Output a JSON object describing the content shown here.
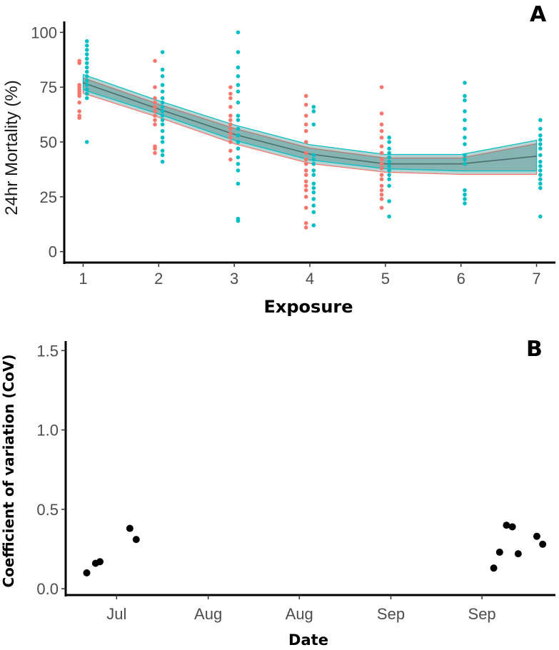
{
  "chart_data": [
    {
      "panel_label": "A",
      "type": "scatter",
      "xlabel": "Exposure",
      "ylabel": "24hr Mortality (%)",
      "xlim": [
        0.75,
        7.25
      ],
      "ylim": [
        -5,
        105
      ],
      "x_ticks": [
        "1",
        "2",
        "3",
        "4",
        "5",
        "6",
        "7"
      ],
      "y_ticks": [
        "0",
        "25",
        "50",
        "75",
        "100"
      ],
      "colors": {
        "group1": "#F8766D",
        "group2": "#00BFC4",
        "ribbon": "#2F7F7B",
        "line": "#4A6E6C"
      },
      "series": [
        {
          "name": "group1",
          "points": [
            [
              1,
              61
            ],
            [
              1,
              62
            ],
            [
              1,
              64
            ],
            [
              1,
              68
            ],
            [
              1,
              71
            ],
            [
              1,
              72
            ],
            [
              1,
              73
            ],
            [
              1,
              74
            ],
            [
              1,
              75
            ],
            [
              1,
              76
            ],
            [
              1,
              86
            ],
            [
              1,
              87
            ],
            [
              2,
              45
            ],
            [
              2,
              47
            ],
            [
              2,
              48
            ],
            [
              2,
              58
            ],
            [
              2,
              60
            ],
            [
              2,
              62
            ],
            [
              2,
              64
            ],
            [
              2,
              66
            ],
            [
              2,
              68
            ],
            [
              2,
              70
            ],
            [
              2,
              75
            ],
            [
              2,
              87
            ],
            [
              3,
              42
            ],
            [
              3,
              46
            ],
            [
              3,
              50
            ],
            [
              3,
              52
            ],
            [
              3,
              54
            ],
            [
              3,
              56
            ],
            [
              3,
              58
            ],
            [
              3,
              60
            ],
            [
              3,
              62
            ],
            [
              3,
              66
            ],
            [
              3,
              70
            ],
            [
              3,
              72
            ],
            [
              3,
              75
            ],
            [
              4,
              11
            ],
            [
              4,
              13
            ],
            [
              4,
              20
            ],
            [
              4,
              25
            ],
            [
              4,
              28
            ],
            [
              4,
              30
            ],
            [
              4,
              32
            ],
            [
              4,
              35
            ],
            [
              4,
              37
            ],
            [
              4,
              40
            ],
            [
              4,
              42
            ],
            [
              4,
              45
            ],
            [
              4,
              50
            ],
            [
              4,
              55
            ],
            [
              4,
              58
            ],
            [
              4,
              62
            ],
            [
              4,
              67
            ],
            [
              4,
              71
            ],
            [
              5,
              20
            ],
            [
              5,
              24
            ],
            [
              5,
              26
            ],
            [
              5,
              28
            ],
            [
              5,
              30
            ],
            [
              5,
              33
            ],
            [
              5,
              35
            ],
            [
              5,
              38
            ],
            [
              5,
              40
            ],
            [
              5,
              42
            ],
            [
              5,
              45
            ],
            [
              5,
              48
            ],
            [
              5,
              52
            ],
            [
              5,
              55
            ],
            [
              5,
              58
            ],
            [
              5,
              63
            ],
            [
              5,
              75
            ]
          ]
        },
        {
          "name": "group2",
          "points": [
            [
              1,
              50
            ],
            [
              1,
              70
            ],
            [
              1,
              72
            ],
            [
              1,
              74
            ],
            [
              1,
              76
            ],
            [
              1,
              78
            ],
            [
              1,
              80
            ],
            [
              1,
              82
            ],
            [
              1,
              84
            ],
            [
              1,
              86
            ],
            [
              1,
              88
            ],
            [
              1,
              90
            ],
            [
              1,
              92
            ],
            [
              1,
              94
            ],
            [
              1,
              96
            ],
            [
              2,
              41
            ],
            [
              2,
              44
            ],
            [
              2,
              46
            ],
            [
              2,
              50
            ],
            [
              2,
              52
            ],
            [
              2,
              55
            ],
            [
              2,
              58
            ],
            [
              2,
              60
            ],
            [
              2,
              62
            ],
            [
              2,
              64
            ],
            [
              2,
              66
            ],
            [
              2,
              68
            ],
            [
              2,
              70
            ],
            [
              2,
              73
            ],
            [
              2,
              76
            ],
            [
              2,
              80
            ],
            [
              2,
              83
            ],
            [
              2,
              91
            ],
            [
              3,
              14
            ],
            [
              3,
              15
            ],
            [
              3,
              31
            ],
            [
              3,
              37
            ],
            [
              3,
              40
            ],
            [
              3,
              43
            ],
            [
              3,
              47
            ],
            [
              3,
              50
            ],
            [
              3,
              53
            ],
            [
              3,
              56
            ],
            [
              3,
              60
            ],
            [
              3,
              62
            ],
            [
              3,
              68
            ],
            [
              3,
              73
            ],
            [
              3,
              76
            ],
            [
              3,
              80
            ],
            [
              3,
              84
            ],
            [
              3,
              91
            ],
            [
              3,
              100
            ],
            [
              4,
              12
            ],
            [
              4,
              18
            ],
            [
              4,
              21
            ],
            [
              4,
              24
            ],
            [
              4,
              27
            ],
            [
              4,
              29
            ],
            [
              4,
              31
            ],
            [
              4,
              35
            ],
            [
              4,
              37
            ],
            [
              4,
              40
            ],
            [
              4,
              42
            ],
            [
              4,
              44
            ],
            [
              4,
              58
            ],
            [
              4,
              64
            ],
            [
              4,
              66
            ],
            [
              5,
              16
            ],
            [
              5,
              23
            ],
            [
              5,
              30
            ],
            [
              5,
              33
            ],
            [
              5,
              35
            ],
            [
              5,
              37
            ],
            [
              5,
              39
            ],
            [
              5,
              41
            ],
            [
              5,
              43
            ],
            [
              5,
              45
            ],
            [
              5,
              47
            ],
            [
              5,
              50
            ],
            [
              5,
              52
            ],
            [
              6,
              22
            ],
            [
              6,
              24
            ],
            [
              6,
              26
            ],
            [
              6,
              28
            ],
            [
              6,
              40
            ],
            [
              6,
              42
            ],
            [
              6,
              44
            ],
            [
              6,
              49
            ],
            [
              6,
              52
            ],
            [
              6,
              56
            ],
            [
              6,
              60
            ],
            [
              6,
              64
            ],
            [
              6,
              69
            ],
            [
              6,
              71
            ],
            [
              6,
              77
            ],
            [
              7,
              16
            ],
            [
              7,
              29
            ],
            [
              7,
              31
            ],
            [
              7,
              33
            ],
            [
              7,
              35
            ],
            [
              7,
              37
            ],
            [
              7,
              39
            ],
            [
              7,
              41
            ],
            [
              7,
              44
            ],
            [
              7,
              47
            ],
            [
              7,
              49
            ],
            [
              7,
              51
            ],
            [
              7,
              53
            ],
            [
              7,
              56
            ],
            [
              7,
              60
            ]
          ]
        }
      ],
      "fit": {
        "x": [
          1,
          2,
          3,
          4,
          5,
          6,
          7
        ],
        "y": [
          77,
          65,
          53.5,
          44.5,
          40,
          40,
          43.5
        ],
        "upper": [
          80,
          68,
          57,
          48,
          43.5,
          43.5,
          50
        ],
        "lower": [
          73,
          62,
          50,
          41,
          37,
          36,
          36
        ]
      }
    },
    {
      "panel_label": "B",
      "type": "scatter",
      "xlabel": "Date",
      "ylabel": "Coefficient of variation (CoV)",
      "xlim": [
        0,
        100
      ],
      "ylim": [
        -0.04,
        1.56
      ],
      "x_ticks": [
        "Jul",
        "Aug",
        "Aug",
        "Sep",
        "Sep"
      ],
      "x_tick_positions": [
        10.4,
        29.1,
        47.7,
        66.4,
        85.0
      ],
      "y_ticks": [
        "0.0",
        "0.5",
        "1.0",
        "1.5"
      ],
      "color": "#000000",
      "points": [
        [
          4.3,
          0.1
        ],
        [
          6.1,
          0.16
        ],
        [
          7.0,
          0.17
        ],
        [
          13.1,
          0.38
        ],
        [
          14.4,
          0.31
        ],
        [
          87.4,
          0.13
        ],
        [
          88.6,
          0.23
        ],
        [
          90.0,
          0.4
        ],
        [
          91.2,
          0.39
        ],
        [
          92.4,
          0.22
        ],
        [
          96.2,
          0.33
        ],
        [
          97.4,
          0.28
        ]
      ]
    }
  ]
}
